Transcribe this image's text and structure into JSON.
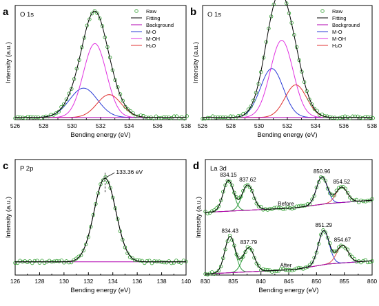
{
  "colors": {
    "raw": "#2e9e2e",
    "fitting": "#000000",
    "background": "#b000b0",
    "mo": "#2a3bd6",
    "moh": "#e030e0",
    "h2o": "#e03030",
    "la_peak_a": "#2a9a3a",
    "la_peak_b": "#2a3bd6",
    "la_peak_c": "#e05050"
  },
  "legend": [
    "Raw",
    "Fitting",
    "Background",
    "M-O",
    "M-OH",
    "H₂O"
  ],
  "chart_data": [
    {
      "panel": "a",
      "type": "line",
      "region_label": "O 1s",
      "xlabel": "Bending energy (eV)",
      "ylabel": "Intensity (a.u.)",
      "xlim": [
        526,
        538
      ],
      "xticks": [
        "526",
        "528",
        "530",
        "532",
        "534",
        "536",
        "538"
      ],
      "legend_placement": "top-right",
      "ylim": [
        0,
        1.05
      ],
      "background_level": 0.02,
      "components": [
        {
          "name": "M-O",
          "center": 530.8,
          "fwhm": 2.3,
          "height": 0.27
        },
        {
          "name": "M-OH",
          "center": 531.6,
          "fwhm": 1.9,
          "height": 0.68
        },
        {
          "name": "H₂O",
          "center": 532.6,
          "fwhm": 2.0,
          "height": 0.21
        }
      ]
    },
    {
      "panel": "b",
      "type": "line",
      "region_label": "O 1s",
      "xlabel": "Bending energy (eV)",
      "ylabel": "Intensity (a.u.)",
      "xlim": [
        526,
        538
      ],
      "xticks": [
        "526",
        "528",
        "530",
        "532",
        "534",
        "536",
        "538"
      ],
      "legend_placement": "top-right",
      "ylim": [
        0,
        1.05
      ],
      "background_level": 0.02,
      "components": [
        {
          "name": "M-O",
          "center": 530.9,
          "fwhm": 1.9,
          "height": 0.45
        },
        {
          "name": "M-OH",
          "center": 531.6,
          "fwhm": 1.9,
          "height": 0.71
        },
        {
          "name": "H₂O",
          "center": 532.6,
          "fwhm": 1.8,
          "height": 0.3
        }
      ]
    },
    {
      "panel": "c",
      "type": "line",
      "region_label": "P 2p",
      "xlabel": "Bending energy (eV)",
      "ylabel": "Intensity (a.u.)",
      "xlim": [
        126,
        140
      ],
      "xticks": [
        "126",
        "128",
        "130",
        "132",
        "134",
        "136",
        "138",
        "140"
      ],
      "ylim": [
        0,
        1.05
      ],
      "background_level": 0.12,
      "peak_annotation": "133.36 eV",
      "components": [
        {
          "name": "P 2p",
          "center": 133.36,
          "fwhm": 2.1,
          "height": 0.76
        }
      ]
    },
    {
      "panel": "d",
      "type": "line",
      "region_label": "La 3d",
      "xlabel": "Bending energy (eV)",
      "ylabel": "Intensity (a.u.)",
      "xlim": [
        830,
        860
      ],
      "xticks": [
        "830",
        "835",
        "840",
        "845",
        "850",
        "855",
        "860"
      ],
      "ylim": [
        0,
        1.05
      ],
      "spectra": [
        {
          "label": "Before",
          "offset": 0.55,
          "background": [
            [
              830,
              0.02
            ],
            [
              846,
              0.06
            ],
            [
              852,
              0.1
            ],
            [
              860,
              0.13
            ]
          ],
          "components": [
            {
              "center": 834.15,
              "fwhm": 2.2,
              "height": 0.28
            },
            {
              "center": 837.62,
              "fwhm": 2.4,
              "height": 0.23
            },
            {
              "center": 850.96,
              "fwhm": 2.3,
              "height": 0.25
            },
            {
              "center": 854.52,
              "fwhm": 2.4,
              "height": 0.14
            }
          ],
          "peak_labels": [
            "834.15",
            "837.62",
            "850.96",
            "854.52"
          ]
        },
        {
          "label": "After",
          "offset": 0.0,
          "background": [
            [
              830,
              0.01
            ],
            [
              846,
              0.05
            ],
            [
              852,
              0.1
            ],
            [
              860,
              0.13
            ]
          ],
          "components": [
            {
              "center": 834.43,
              "fwhm": 2.2,
              "height": 0.33
            },
            {
              "center": 837.79,
              "fwhm": 2.4,
              "height": 0.22
            },
            {
              "center": 851.29,
              "fwhm": 2.3,
              "height": 0.31
            },
            {
              "center": 854.67,
              "fwhm": 2.4,
              "height": 0.16
            }
          ],
          "peak_labels": [
            "834.43",
            "837.79",
            "851.29",
            "854.67"
          ]
        }
      ]
    }
  ]
}
